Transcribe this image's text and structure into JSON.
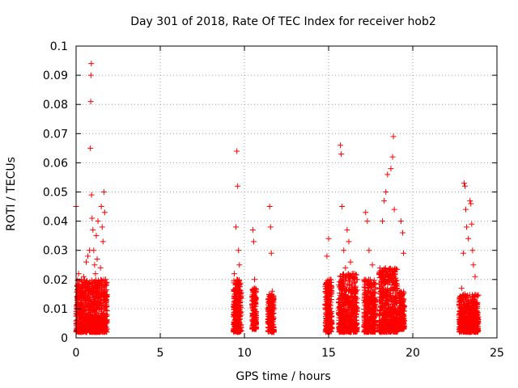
{
  "chart_data": {
    "type": "scatter",
    "title": "Day 301 of 2018, Rate Of TEC Index for receiver hob2",
    "xlabel": "GPS time / hours",
    "ylabel": "ROTI / TECUs",
    "xlim": [
      0,
      25
    ],
    "ylim": [
      0,
      0.1
    ],
    "x_ticks": [
      "0",
      "5",
      "10",
      "15",
      "20",
      "25"
    ],
    "y_ticks": [
      "0",
      "0.01",
      "0.02",
      "0.03",
      "0.04",
      "0.05",
      "0.06",
      "0.07",
      "0.08",
      "0.09",
      "0.1"
    ],
    "grid": true,
    "marker": "plus",
    "point_color": "#ff0000",
    "series": [
      {
        "points": [
          [
            0.0,
            0.045
          ],
          [
            0.05,
            0.006
          ],
          [
            0.1,
            0.012
          ],
          [
            0.15,
            0.022
          ],
          [
            0.2,
            0.009
          ],
          [
            0.25,
            0.016
          ],
          [
            0.3,
            0.004
          ],
          [
            0.35,
            0.018
          ],
          [
            0.4,
            0.011
          ],
          [
            0.45,
            0.021
          ],
          [
            0.5,
            0.007
          ],
          [
            0.55,
            0.014
          ],
          [
            0.6,
            0.026
          ],
          [
            0.65,
            0.019
          ],
          [
            0.7,
            0.028
          ],
          [
            0.75,
            0.013
          ],
          [
            0.8,
            0.03
          ],
          [
            0.85,
            0.065
          ],
          [
            0.87,
            0.081
          ],
          [
            0.88,
            0.09
          ],
          [
            0.9,
            0.094
          ],
          [
            0.92,
            0.049
          ],
          [
            0.95,
            0.041
          ],
          [
            1.0,
            0.037
          ],
          [
            1.05,
            0.03
          ],
          [
            1.1,
            0.025
          ],
          [
            1.15,
            0.022
          ],
          [
            1.2,
            0.035
          ],
          [
            1.25,
            0.027
          ],
          [
            1.3,
            0.04
          ],
          [
            1.35,
            0.018
          ],
          [
            1.4,
            0.012
          ],
          [
            1.45,
            0.024
          ],
          [
            1.5,
            0.045
          ],
          [
            1.55,
            0.038
          ],
          [
            1.6,
            0.033
          ],
          [
            1.65,
            0.05
          ],
          [
            1.7,
            0.043
          ],
          [
            1.75,
            0.02
          ],
          [
            1.8,
            0.014
          ],
          [
            9.4,
            0.022
          ],
          [
            9.45,
            0.015
          ],
          [
            9.5,
            0.038
          ],
          [
            9.55,
            0.064
          ],
          [
            9.6,
            0.052
          ],
          [
            9.65,
            0.03
          ],
          [
            9.7,
            0.025
          ],
          [
            9.75,
            0.009
          ],
          [
            10.5,
            0.037
          ],
          [
            10.55,
            0.033
          ],
          [
            10.6,
            0.02
          ],
          [
            10.65,
            0.014
          ],
          [
            11.5,
            0.045
          ],
          [
            11.55,
            0.038
          ],
          [
            11.6,
            0.029
          ],
          [
            11.65,
            0.016
          ],
          [
            14.9,
            0.028
          ],
          [
            15.0,
            0.034
          ],
          [
            15.1,
            0.02
          ],
          [
            15.7,
            0.066
          ],
          [
            15.75,
            0.063
          ],
          [
            15.8,
            0.045
          ],
          [
            15.9,
            0.03
          ],
          [
            16.0,
            0.024
          ],
          [
            16.1,
            0.037
          ],
          [
            16.2,
            0.033
          ],
          [
            16.3,
            0.026
          ],
          [
            16.5,
            0.022
          ],
          [
            17.2,
            0.043
          ],
          [
            17.3,
            0.04
          ],
          [
            17.4,
            0.03
          ],
          [
            17.6,
            0.025
          ],
          [
            18.2,
            0.04
          ],
          [
            18.3,
            0.047
          ],
          [
            18.4,
            0.05
          ],
          [
            18.5,
            0.056
          ],
          [
            18.7,
            0.058
          ],
          [
            18.8,
            0.062
          ],
          [
            18.85,
            0.069
          ],
          [
            18.9,
            0.044
          ],
          [
            19.3,
            0.04
          ],
          [
            19.4,
            0.036
          ],
          [
            19.45,
            0.029
          ],
          [
            22.9,
            0.017
          ],
          [
            23.0,
            0.029
          ],
          [
            23.05,
            0.053
          ],
          [
            23.1,
            0.052
          ],
          [
            23.15,
            0.044
          ],
          [
            23.2,
            0.038
          ],
          [
            23.3,
            0.034
          ],
          [
            23.4,
            0.047
          ],
          [
            23.45,
            0.046
          ],
          [
            23.5,
            0.039
          ],
          [
            23.55,
            0.03
          ],
          [
            23.6,
            0.025
          ],
          [
            23.7,
            0.021
          ]
        ],
        "dense_clusters": [
          {
            "x_range": [
              0.0,
              1.85
            ],
            "y_range": [
              0.002,
              0.02
            ]
          },
          {
            "x_range": [
              9.35,
              9.8
            ],
            "y_range": [
              0.002,
              0.02
            ]
          },
          {
            "x_range": [
              10.45,
              10.7
            ],
            "y_range": [
              0.003,
              0.017
            ]
          },
          {
            "x_range": [
              11.4,
              11.75
            ],
            "y_range": [
              0.002,
              0.015
            ]
          },
          {
            "x_range": [
              14.8,
              15.2
            ],
            "y_range": [
              0.002,
              0.02
            ]
          },
          {
            "x_range": [
              15.6,
              16.7
            ],
            "y_range": [
              0.002,
              0.022
            ]
          },
          {
            "x_range": [
              17.1,
              17.8
            ],
            "y_range": [
              0.002,
              0.02
            ]
          },
          {
            "x_range": [
              18.0,
              19.1
            ],
            "y_range": [
              0.002,
              0.024
            ]
          },
          {
            "x_range": [
              19.2,
              19.5
            ],
            "y_range": [
              0.003,
              0.016
            ]
          },
          {
            "x_range": [
              22.75,
              23.9
            ],
            "y_range": [
              0.002,
              0.015
            ]
          }
        ]
      }
    ]
  }
}
